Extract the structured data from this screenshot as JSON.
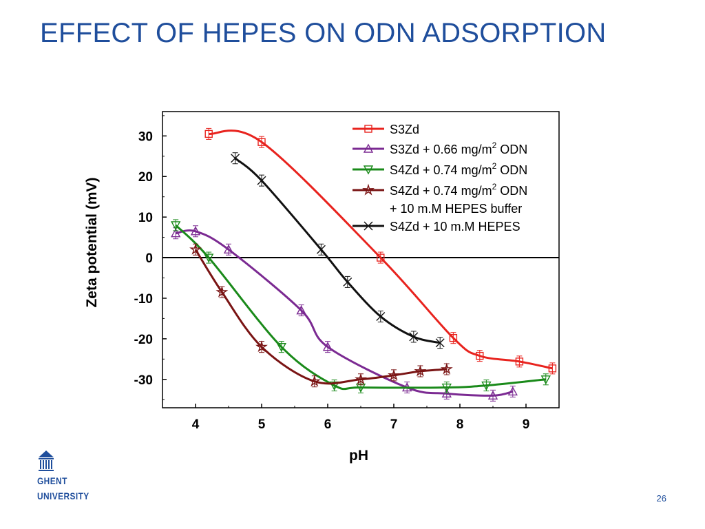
{
  "slide": {
    "title": "EFFECT OF HEPES ON ODN ADSORPTION",
    "page_number": "26",
    "logo_line1": "GHENT",
    "logo_line2": "UNIVERSITY"
  },
  "colors": {
    "title": "#1f4e9c",
    "red": "#e8231e",
    "purple": "#7b2a92",
    "green": "#1a8a1a",
    "darkred": "#7a1414",
    "black": "#111111"
  },
  "chart_data": {
    "type": "line",
    "xlabel": "pH",
    "ylabel": "Zeta potential (mV)",
    "xlim": [
      3.5,
      9.5
    ],
    "ylim": [
      -37,
      36
    ],
    "xticks": [
      4,
      5,
      6,
      7,
      8,
      9
    ],
    "yticks": [
      30,
      20,
      10,
      0,
      -10,
      -20,
      -30
    ],
    "grid": false,
    "zero_line": true,
    "legend_position": "top-right",
    "series": [
      {
        "name": "S3Zd",
        "marker": "square",
        "color": "#e8231e",
        "x": [
          4.2,
          5.0,
          6.8,
          7.9,
          8.3,
          8.9,
          9.4
        ],
        "y": [
          30.5,
          28.5,
          0,
          -19.8,
          -24.2,
          -25.6,
          -27.3
        ]
      },
      {
        "name": "S3Zd + 0.66 mg/m² ODN",
        "name_main": "S3Zd + 0.66 mg/m",
        "name_sup": "2",
        "name_tail": " ODN",
        "marker": "triangle-up",
        "color": "#7b2a92",
        "x": [
          3.7,
          4.0,
          4.5,
          5.6,
          6.0,
          7.2,
          7.8,
          8.5,
          8.8
        ],
        "y": [
          6,
          6.5,
          2,
          -13,
          -22,
          -32,
          -33.5,
          -34,
          -33
        ]
      },
      {
        "name": "S4Zd + 0.74 mg/m² ODN",
        "name_main": "S4Zd + 0.74 mg/m",
        "name_sup": "2",
        "name_tail": " ODN",
        "marker": "triangle-down",
        "color": "#1a8a1a",
        "x": [
          3.7,
          4.2,
          5.3,
          6.1,
          6.5,
          7.8,
          8.4,
          9.3
        ],
        "y": [
          8,
          0,
          -22,
          -31.5,
          -32,
          -32,
          -31.5,
          -30
        ]
      },
      {
        "name": "S4Zd + 0.74 mg/m² ODN + 10 mM HEPES buffer",
        "name_main": "S4Zd + 0.74 mg/m",
        "name_sup": "2",
        "name_tail": " ODN",
        "name_line2": "+ 10 m.M HEPES buffer",
        "marker": "star",
        "color": "#7a1414",
        "x": [
          4.0,
          4.4,
          5.0,
          5.8,
          6.5,
          7.0,
          7.4,
          7.8
        ],
        "y": [
          2,
          -8.5,
          -22,
          -30.5,
          -30,
          -29,
          -28,
          -27.5
        ]
      },
      {
        "name": "S4Zd + 10 m.M HEPES",
        "marker": "x",
        "color": "#111111",
        "x": [
          4.6,
          5.0,
          5.9,
          6.3,
          6.8,
          7.3,
          7.7
        ],
        "y": [
          24.5,
          19,
          2,
          -6,
          -14.5,
          -19.5,
          -21
        ]
      }
    ]
  }
}
